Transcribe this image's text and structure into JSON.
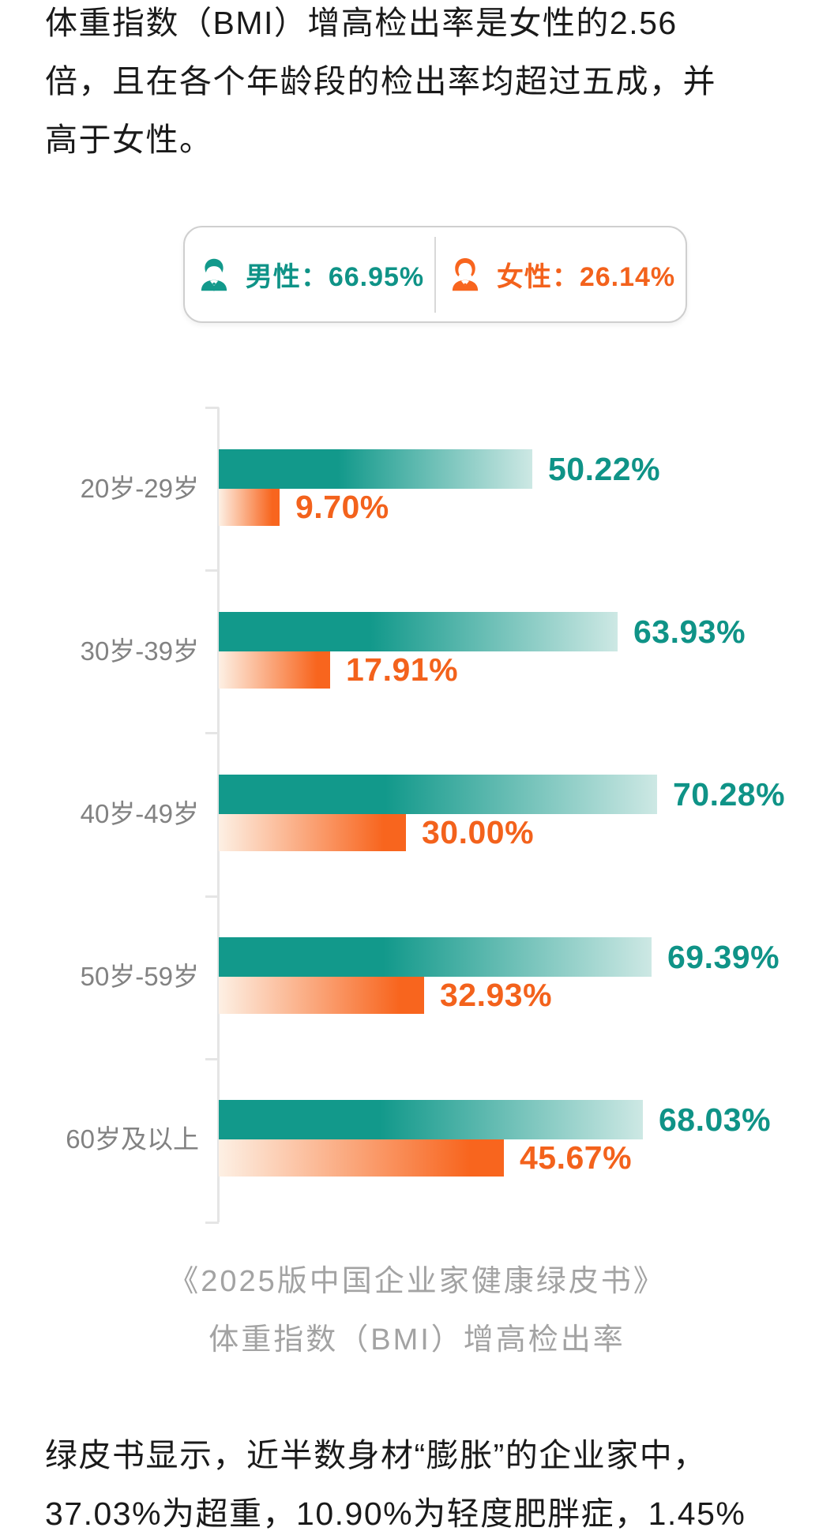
{
  "page": {
    "background": "#ffffff"
  },
  "intro": {
    "lines": [
      "体重指数（BMI）增高检出率是女性的2.56",
      "倍，且在各个年龄段的检出率均超过五成，并",
      "高于女性。"
    ]
  },
  "legend": {
    "male": {
      "label": "男性：",
      "value": "66.95%"
    },
    "female": {
      "label": "女性：",
      "value": "26.14%"
    }
  },
  "chart_data": {
    "type": "bar",
    "orientation": "horizontal",
    "categories": [
      "20岁-29岁",
      "30岁-39岁",
      "40岁-49岁",
      "50岁-59岁",
      "60岁及以上"
    ],
    "series": [
      {
        "name": "男性",
        "color": "#12998b",
        "values": [
          50.22,
          63.93,
          70.28,
          69.39,
          68.03
        ]
      },
      {
        "name": "女性",
        "color": "#f8651e",
        "values": [
          9.7,
          17.91,
          30.0,
          32.93,
          45.67
        ]
      }
    ],
    "value_suffix": "%",
    "xlim": [
      0,
      100
    ],
    "grid": false,
    "value_labels_shown": true,
    "legend_position": "top"
  },
  "caption": {
    "lines": [
      "《2025版中国企业家健康绿皮书》",
      "体重指数（BMI）增高检出率"
    ]
  },
  "footer": {
    "lines": [
      "绿皮书显示，近半数身材“膨胀”的企业家中，",
      "37.03%为超重，10.90%为轻度肥胖症，1.45%"
    ]
  },
  "colors": {
    "teal_solid": "#12998b",
    "teal_light": "#cde8e4",
    "teal_text": "#0f9387",
    "orange_solid": "#f8651e",
    "orange_light": "#fdf0e4",
    "orange_text": "#f3621c",
    "axis": "#e5e5e5",
    "age_label": "#828282",
    "caption_text": "#a3a3a3",
    "body_text": "#1a1a1a",
    "card_border": "#cfcfcf"
  }
}
